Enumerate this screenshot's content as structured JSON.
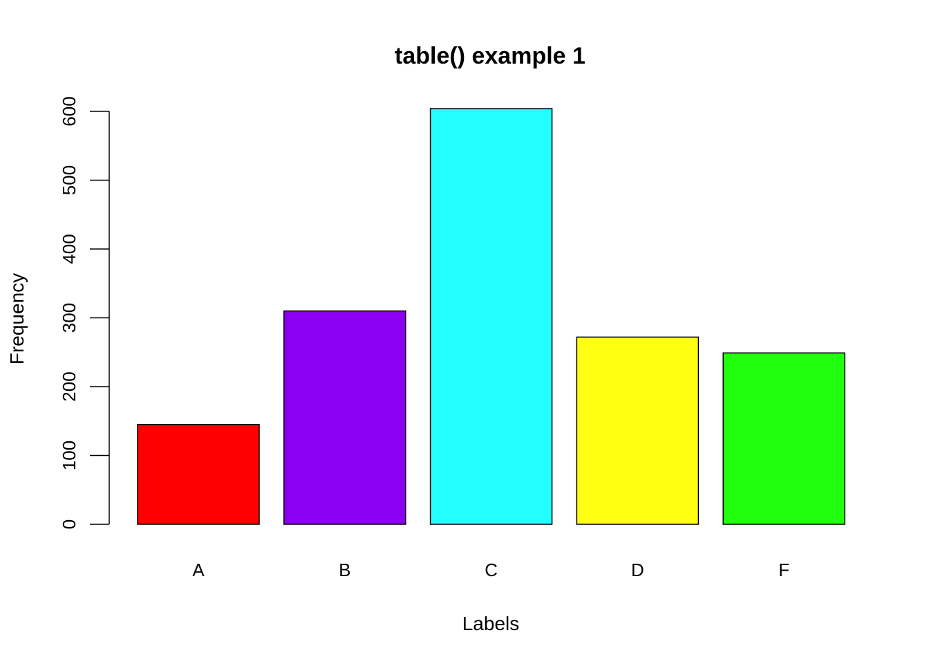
{
  "chart_data": {
    "type": "bar",
    "title": "table() example 1",
    "xlabel": "Labels",
    "ylabel": "Frequency",
    "categories": [
      "A",
      "B",
      "C",
      "D",
      "F"
    ],
    "values": [
      145,
      310,
      604,
      272,
      249
    ],
    "colors": [
      "#ff0000",
      "#8b00f0",
      "#21ffff",
      "#ffff14",
      "#21ff0e"
    ],
    "ylim": [
      0,
      600
    ],
    "yticks": [
      0,
      100,
      200,
      300,
      400,
      500,
      600
    ],
    "grid": false,
    "legend": "none"
  }
}
